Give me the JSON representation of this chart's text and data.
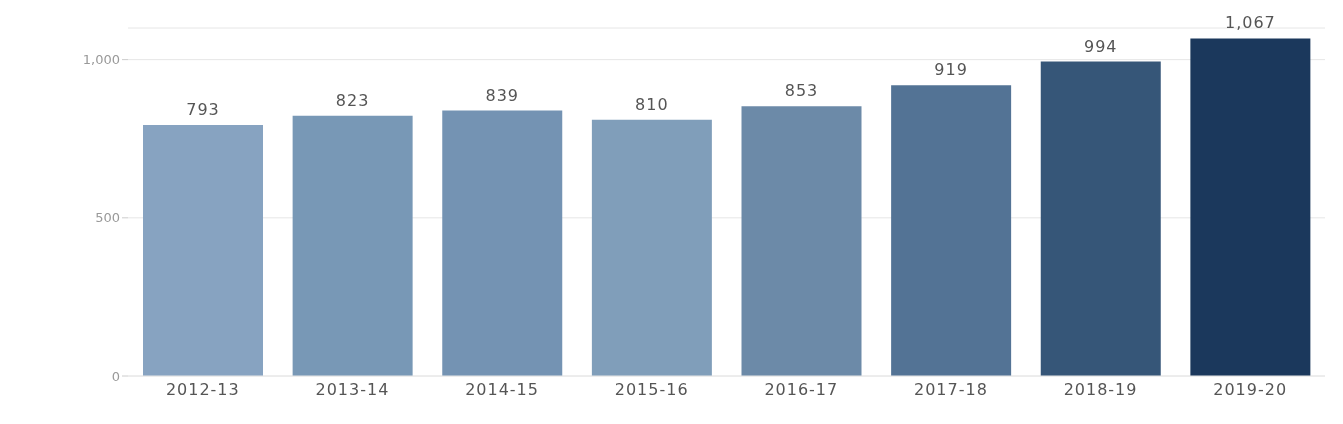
{
  "chart_data": {
    "type": "bar",
    "categories": [
      "2012-13",
      "2013-14",
      "2014-15",
      "2015-16",
      "2016-17",
      "2017-18",
      "2018-19",
      "2019-20"
    ],
    "values": [
      793,
      823,
      839,
      810,
      853,
      919,
      994,
      1067
    ],
    "colors": [
      "#87a3c1",
      "#7898b6",
      "#7493b3",
      "#809eba",
      "#6c8aa8",
      "#537395",
      "#365678",
      "#1b385c"
    ],
    "value_labels": [
      "793",
      "823",
      "839",
      "810",
      "853",
      "919",
      "994",
      "1,067"
    ],
    "ylim": [
      0,
      1100
    ],
    "yticks": [
      0,
      500,
      {
        "value": 1000,
        "label": "1,000"
      }
    ],
    "grid": "y"
  }
}
